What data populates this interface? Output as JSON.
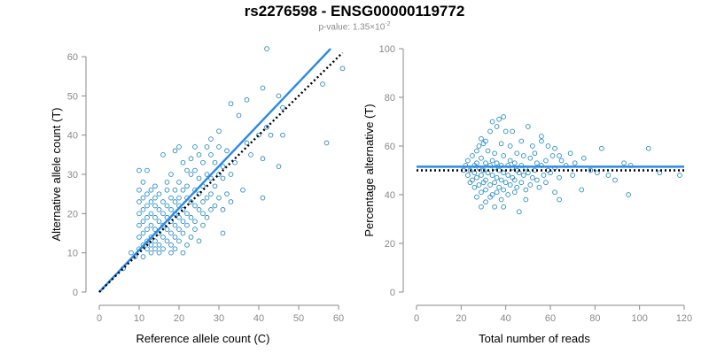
{
  "title": "rs2276598 - ENSG00000119772",
  "subtitle": {
    "prefix": "p-value: 1.35×10",
    "exponent": "-2"
  },
  "colors": {
    "points": "#2b8cc4",
    "fit": "#2b8ae6",
    "reference": "#000000",
    "axis": "#8a8a8a"
  },
  "chart_data": [
    {
      "type": "scatter",
      "xlabel": "Reference allele count (C)",
      "ylabel": "Alternative allele count (T)",
      "xlim": [
        0,
        60
      ],
      "ylim": [
        0,
        60
      ],
      "xticks": [
        0,
        10,
        20,
        30,
        40,
        50,
        60
      ],
      "yticks": [
        0,
        10,
        20,
        30,
        40,
        50,
        60
      ],
      "grid": false,
      "lines": [
        {
          "role": "fit",
          "style": "solid",
          "x": [
            0,
            58
          ],
          "y": [
            0,
            62
          ]
        },
        {
          "role": "reference",
          "style": "dotted",
          "x": [
            0,
            61
          ],
          "y": [
            0,
            61
          ]
        }
      ],
      "points": [
        [
          42,
          62
        ],
        [
          61,
          57
        ],
        [
          56,
          53
        ],
        [
          41,
          52
        ],
        [
          37,
          49
        ],
        [
          45,
          50
        ],
        [
          33,
          48
        ],
        [
          46,
          47
        ],
        [
          35,
          45
        ],
        [
          42,
          42
        ],
        [
          40,
          40
        ],
        [
          43,
          40
        ],
        [
          46,
          40
        ],
        [
          37,
          38
        ],
        [
          57,
          38
        ],
        [
          30,
          41
        ],
        [
          28,
          39
        ],
        [
          27,
          37
        ],
        [
          24,
          37
        ],
        [
          20,
          37
        ],
        [
          30,
          37
        ],
        [
          32,
          36
        ],
        [
          38,
          35
        ],
        [
          16,
          35
        ],
        [
          19,
          36
        ],
        [
          25,
          35
        ],
        [
          28,
          35
        ],
        [
          41,
          34
        ],
        [
          23,
          34
        ],
        [
          26,
          33
        ],
        [
          29,
          33
        ],
        [
          21,
          33
        ],
        [
          34,
          33
        ],
        [
          31,
          32
        ],
        [
          45,
          32
        ],
        [
          10,
          31
        ],
        [
          12,
          31
        ],
        [
          22,
          31
        ],
        [
          24,
          31
        ],
        [
          18,
          30
        ],
        [
          23,
          30
        ],
        [
          27,
          30
        ],
        [
          30,
          30
        ],
        [
          33,
          30
        ],
        [
          25,
          29
        ],
        [
          28,
          29
        ],
        [
          31,
          29
        ],
        [
          20,
          28
        ],
        [
          17,
          28
        ],
        [
          11,
          28
        ],
        [
          14,
          27
        ],
        [
          22,
          27
        ],
        [
          26,
          27
        ],
        [
          29,
          27
        ],
        [
          10,
          26
        ],
        [
          13,
          26
        ],
        [
          17,
          26
        ],
        [
          19,
          26
        ],
        [
          21,
          26
        ],
        [
          24,
          26
        ],
        [
          36,
          26
        ],
        [
          12,
          25
        ],
        [
          15,
          25
        ],
        [
          25,
          25
        ],
        [
          28,
          25
        ],
        [
          32,
          25
        ],
        [
          11,
          24
        ],
        [
          14,
          24
        ],
        [
          18,
          24
        ],
        [
          20,
          24
        ],
        [
          22,
          24
        ],
        [
          27,
          24
        ],
        [
          30,
          24
        ],
        [
          41,
          24
        ],
        [
          10,
          23
        ],
        [
          13,
          23
        ],
        [
          16,
          23
        ],
        [
          19,
          23
        ],
        [
          23,
          23
        ],
        [
          26,
          23
        ],
        [
          33,
          23
        ],
        [
          12,
          22
        ],
        [
          14,
          22
        ],
        [
          17,
          22
        ],
        [
          20,
          22
        ],
        [
          24,
          22
        ],
        [
          29,
          22
        ],
        [
          11,
          21
        ],
        [
          15,
          21
        ],
        [
          18,
          21
        ],
        [
          21,
          21
        ],
        [
          25,
          21
        ],
        [
          28,
          21
        ],
        [
          31,
          21
        ],
        [
          10,
          20
        ],
        [
          13,
          20
        ],
        [
          16,
          20
        ],
        [
          19,
          20
        ],
        [
          22,
          20
        ],
        [
          26,
          20
        ],
        [
          12,
          19
        ],
        [
          14,
          19
        ],
        [
          17,
          19
        ],
        [
          20,
          19
        ],
        [
          23,
          19
        ],
        [
          27,
          19
        ],
        [
          11,
          18
        ],
        [
          15,
          18
        ],
        [
          18,
          18
        ],
        [
          21,
          18
        ],
        [
          24,
          18
        ],
        [
          10,
          17
        ],
        [
          13,
          17
        ],
        [
          16,
          17
        ],
        [
          19,
          17
        ],
        [
          22,
          17
        ],
        [
          26,
          17
        ],
        [
          12,
          16
        ],
        [
          14,
          16
        ],
        [
          17,
          16
        ],
        [
          20,
          16
        ],
        [
          24,
          16
        ],
        [
          11,
          15
        ],
        [
          15,
          15
        ],
        [
          18,
          15
        ],
        [
          21,
          15
        ],
        [
          31,
          15
        ],
        [
          10,
          14
        ],
        [
          13,
          14
        ],
        [
          16,
          14
        ],
        [
          19,
          14
        ],
        [
          23,
          14
        ],
        [
          12,
          13
        ],
        [
          14,
          13
        ],
        [
          17,
          13
        ],
        [
          20,
          13
        ],
        [
          25,
          13
        ],
        [
          11,
          12
        ],
        [
          13,
          12
        ],
        [
          15,
          12
        ],
        [
          18,
          12
        ],
        [
          22,
          12
        ],
        [
          10,
          11
        ],
        [
          12,
          11
        ],
        [
          14,
          11
        ],
        [
          16,
          11
        ],
        [
          19,
          11
        ],
        [
          13,
          10
        ],
        [
          15,
          10
        ],
        [
          18,
          10
        ],
        [
          21,
          10
        ],
        [
          8,
          10
        ],
        [
          9,
          9
        ],
        [
          11,
          9
        ],
        [
          6,
          6
        ]
      ]
    },
    {
      "type": "scatter",
      "xlabel": "Total number of reads",
      "ylabel": "Percentage alternative (T)",
      "xlim": [
        0,
        120
      ],
      "ylim": [
        0,
        100
      ],
      "xticks": [
        0,
        20,
        40,
        60,
        80,
        100,
        120
      ],
      "yticks": [
        0,
        20,
        40,
        60,
        80,
        100
      ],
      "grid": false,
      "lines": [
        {
          "role": "fit",
          "style": "solid",
          "x": [
            0,
            120
          ],
          "y": [
            51.5,
            51.5
          ]
        },
        {
          "role": "reference",
          "style": "dotted",
          "x": [
            0,
            120
          ],
          "y": [
            50,
            50
          ]
        }
      ],
      "points": [
        [
          37,
          71
        ],
        [
          39,
          72
        ],
        [
          34,
          70
        ],
        [
          36,
          68
        ],
        [
          50,
          68
        ],
        [
          33,
          66
        ],
        [
          40,
          66
        ],
        [
          43,
          66
        ],
        [
          56,
          64
        ],
        [
          29,
          63
        ],
        [
          31,
          62
        ],
        [
          47,
          62
        ],
        [
          56,
          62
        ],
        [
          28,
          60
        ],
        [
          30,
          61
        ],
        [
          38,
          61
        ],
        [
          42,
          60
        ],
        [
          52,
          60
        ],
        [
          59,
          60
        ],
        [
          62,
          59
        ],
        [
          104,
          59
        ],
        [
          83,
          59
        ],
        [
          27,
          58
        ],
        [
          32,
          58
        ],
        [
          35,
          57
        ],
        [
          45,
          57
        ],
        [
          53,
          57
        ],
        [
          69,
          57
        ],
        [
          25,
          56
        ],
        [
          39,
          56
        ],
        [
          48,
          56
        ],
        [
          61,
          56
        ],
        [
          64,
          56
        ],
        [
          75,
          55
        ],
        [
          29,
          55
        ],
        [
          34,
          54
        ],
        [
          42,
          54
        ],
        [
          51,
          55
        ],
        [
          58,
          54
        ],
        [
          65,
          54
        ],
        [
          23,
          54
        ],
        [
          27,
          53
        ],
        [
          31,
          53
        ],
        [
          36,
          53
        ],
        [
          44,
          53
        ],
        [
          54,
          53
        ],
        [
          71,
          53
        ],
        [
          93,
          53
        ],
        [
          22,
          52
        ],
        [
          26,
          52
        ],
        [
          33,
          52
        ],
        [
          38,
          52
        ],
        [
          41,
          52
        ],
        [
          47,
          52
        ],
        [
          56,
          52
        ],
        [
          67,
          52
        ],
        [
          96,
          52
        ],
        [
          28,
          51
        ],
        [
          35,
          51
        ],
        [
          43,
          51
        ],
        [
          49,
          51
        ],
        [
          62,
          51
        ],
        [
          21,
          50
        ],
        [
          24,
          50
        ],
        [
          30,
          50
        ],
        [
          37,
          50
        ],
        [
          45,
          50
        ],
        [
          53,
          50
        ],
        [
          59,
          50
        ],
        [
          78,
          50
        ],
        [
          26,
          49
        ],
        [
          32,
          49
        ],
        [
          39,
          49
        ],
        [
          46,
          49
        ],
        [
          50,
          49
        ],
        [
          60,
          49
        ],
        [
          81,
          49
        ],
        [
          109,
          49
        ],
        [
          118,
          48
        ],
        [
          23,
          48
        ],
        [
          29,
          48
        ],
        [
          34,
          48
        ],
        [
          41,
          48
        ],
        [
          48,
          48
        ],
        [
          57,
          48
        ],
        [
          70,
          48
        ],
        [
          86,
          48
        ],
        [
          27,
          47
        ],
        [
          36,
          47
        ],
        [
          43,
          47
        ],
        [
          52,
          47
        ],
        [
          64,
          47
        ],
        [
          89,
          46
        ],
        [
          25,
          46
        ],
        [
          31,
          46
        ],
        [
          38,
          46
        ],
        [
          44,
          46
        ],
        [
          54,
          46
        ],
        [
          24,
          45
        ],
        [
          30,
          45
        ],
        [
          35,
          45
        ],
        [
          40,
          45
        ],
        [
          47,
          45
        ],
        [
          58,
          45
        ],
        [
          28,
          44
        ],
        [
          33,
          44
        ],
        [
          42,
          44
        ],
        [
          51,
          44
        ],
        [
          26,
          43
        ],
        [
          37,
          43
        ],
        [
          45,
          43
        ],
        [
          55,
          43
        ],
        [
          31,
          42
        ],
        [
          39,
          42
        ],
        [
          49,
          42
        ],
        [
          74,
          42
        ],
        [
          29,
          41
        ],
        [
          36,
          41
        ],
        [
          44,
          41
        ],
        [
          62,
          41
        ],
        [
          34,
          40
        ],
        [
          41,
          40
        ],
        [
          95,
          40
        ],
        [
          27,
          39
        ],
        [
          33,
          39
        ],
        [
          38,
          38
        ],
        [
          49,
          38
        ],
        [
          64,
          38
        ],
        [
          31,
          37
        ],
        [
          29,
          35
        ],
        [
          35,
          35
        ],
        [
          39,
          35
        ],
        [
          46,
          33
        ]
      ]
    }
  ]
}
